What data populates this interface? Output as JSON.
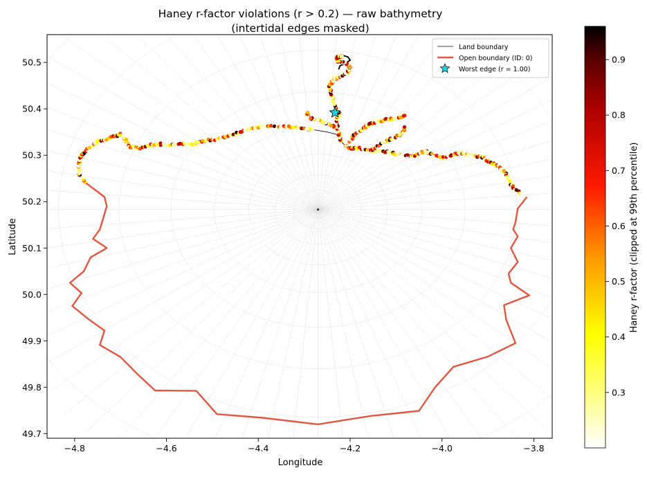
{
  "chart_data": {
    "type": "scatter",
    "title": "Haney r-factor violations (r > 0.2) — raw bathymetry",
    "subtitle": "(intertidal edges masked)",
    "xlabel": "Longitude",
    "ylabel": "Latitude",
    "xlim": [
      -4.86,
      -3.76
    ],
    "ylim": [
      49.69,
      50.56
    ],
    "xticks": [
      -4.8,
      -4.6,
      -4.4,
      -4.2,
      -4.0,
      -3.8
    ],
    "yticks": [
      49.7,
      49.8,
      49.9,
      50.0,
      50.1,
      50.2,
      50.3,
      50.4,
      50.5
    ],
    "xtick_labels": [
      "−4.8",
      "−4.6",
      "−4.4",
      "−4.2",
      "−4.0",
      "−3.8"
    ],
    "ytick_labels": [
      "49.7",
      "49.8",
      "49.9",
      "50.0",
      "50.1",
      "50.2",
      "50.3",
      "50.4",
      "50.5"
    ],
    "grid": false,
    "legend_position": "top-right",
    "legend": [
      {
        "label": "Land boundary",
        "color": "#000000",
        "style": "thin-line"
      },
      {
        "label": "Open boundary (ID: 0)",
        "color": "#e15641",
        "style": "thick-line"
      },
      {
        "label": "Worst edge (r = 1.00)",
        "color": "#18d6e6",
        "style": "star"
      }
    ],
    "colorbar": {
      "label": "Haney r-factor (clipped at 99th percentile)",
      "colormap": "hot_r",
      "range": [
        0.2,
        0.96
      ],
      "ticks": [
        0.3,
        0.4,
        0.5,
        0.6,
        0.7,
        0.8,
        0.9
      ],
      "tick_labels": [
        "0.3",
        "0.4",
        "0.5",
        "0.6",
        "0.7",
        "0.8",
        "0.9"
      ]
    },
    "open_boundary": {
      "name": "Open boundary (ID: 0)",
      "color": "#e15641",
      "points": [
        [
          -4.775,
          50.24
        ],
        [
          -4.735,
          50.21
        ],
        [
          -4.73,
          50.19
        ],
        [
          -4.745,
          50.14
        ],
        [
          -4.76,
          50.12
        ],
        [
          -4.73,
          50.1
        ],
        [
          -4.765,
          50.08
        ],
        [
          -4.78,
          50.05
        ],
        [
          -4.81,
          50.025
        ],
        [
          -4.785,
          50.003
        ],
        [
          -4.805,
          49.975
        ],
        [
          -4.77,
          49.947
        ],
        [
          -4.735,
          49.922
        ],
        [
          -4.745,
          49.891
        ],
        [
          -4.7,
          49.865
        ],
        [
          -4.665,
          49.83
        ],
        [
          -4.625,
          49.793
        ],
        [
          -4.535,
          49.792
        ],
        [
          -4.49,
          49.742
        ],
        [
          -4.39,
          49.734
        ],
        [
          -4.27,
          49.72
        ],
        [
          -4.155,
          49.738
        ],
        [
          -4.05,
          49.749
        ],
        [
          -4.015,
          49.8
        ],
        [
          -3.975,
          49.844
        ],
        [
          -3.9,
          49.866
        ],
        [
          -3.84,
          49.895
        ],
        [
          -3.86,
          49.945
        ],
        [
          -3.865,
          49.977
        ],
        [
          -3.81,
          49.998
        ],
        [
          -3.85,
          50.025
        ],
        [
          -3.855,
          50.045
        ],
        [
          -3.835,
          50.07
        ],
        [
          -3.845,
          50.09
        ],
        [
          -3.85,
          50.1
        ],
        [
          -3.835,
          50.125
        ],
        [
          -3.845,
          50.14
        ],
        [
          -3.84,
          50.155
        ],
        [
          -3.835,
          50.185
        ],
        [
          -3.815,
          50.21
        ]
      ]
    },
    "land_boundary": {
      "name": "Land boundary",
      "color": "#000000",
      "coast": [
        [
          -4.775,
          50.24
        ],
        [
          -4.79,
          50.26
        ],
        [
          -4.792,
          50.28
        ],
        [
          -4.785,
          50.3
        ],
        [
          -4.77,
          50.315
        ],
        [
          -4.75,
          50.33
        ],
        [
          -4.72,
          50.338
        ],
        [
          -4.7,
          50.345
        ],
        [
          -4.688,
          50.333
        ],
        [
          -4.68,
          50.318
        ],
        [
          -4.66,
          50.315
        ],
        [
          -4.64,
          50.32
        ],
        [
          -4.62,
          50.325
        ],
        [
          -4.6,
          50.322
        ],
        [
          -4.57,
          50.325
        ],
        [
          -4.54,
          50.325
        ],
        [
          -4.52,
          50.33
        ],
        [
          -4.49,
          50.335
        ],
        [
          -4.47,
          50.34
        ],
        [
          -4.44,
          50.35
        ],
        [
          -4.41,
          50.36
        ],
        [
          -4.38,
          50.362
        ],
        [
          -4.35,
          50.362
        ],
        [
          -4.31,
          50.36
        ],
        [
          -4.28,
          50.355
        ],
        [
          -4.25,
          50.35
        ],
        [
          -4.23,
          50.345
        ],
        [
          -4.22,
          50.33
        ],
        [
          -4.21,
          50.32
        ],
        [
          -4.2,
          50.315
        ],
        [
          -4.18,
          50.315
        ],
        [
          -4.15,
          50.31
        ],
        [
          -4.12,
          50.308
        ],
        [
          -4.09,
          50.3
        ],
        [
          -4.06,
          50.298
        ],
        [
          -4.035,
          50.31
        ],
        [
          -4.02,
          50.3
        ],
        [
          -4.0,
          50.295
        ],
        [
          -3.98,
          50.3
        ],
        [
          -3.96,
          50.305
        ],
        [
          -3.94,
          50.3
        ],
        [
          -3.91,
          50.295
        ],
        [
          -3.895,
          50.285
        ],
        [
          -3.875,
          50.275
        ],
        [
          -3.86,
          50.258
        ],
        [
          -3.85,
          50.24
        ],
        [
          -3.84,
          50.225
        ],
        [
          -3.815,
          50.21
        ]
      ],
      "estuary_main": [
        [
          -4.22,
          50.33
        ],
        [
          -4.225,
          50.35
        ],
        [
          -4.23,
          50.37
        ],
        [
          -4.225,
          50.39
        ],
        [
          -4.235,
          50.41
        ],
        [
          -4.24,
          50.43
        ],
        [
          -4.245,
          50.45
        ],
        [
          -4.235,
          50.465
        ],
        [
          -4.22,
          50.47
        ],
        [
          -4.205,
          50.478
        ],
        [
          -4.2,
          50.49
        ],
        [
          -4.21,
          50.5
        ],
        [
          -4.225,
          50.502
        ],
        [
          -4.23,
          50.51
        ],
        [
          -4.215,
          50.515
        ],
        [
          -4.205,
          50.512
        ],
        [
          -4.2,
          50.505
        ],
        [
          -4.21,
          50.498
        ],
        [
          -4.222,
          50.493
        ],
        [
          -4.225,
          50.485
        ]
      ],
      "estuary_arm": [
        [
          -4.2,
          50.33
        ],
        [
          -4.19,
          50.345
        ],
        [
          -4.17,
          50.36
        ],
        [
          -4.15,
          50.37
        ],
        [
          -4.13,
          50.375
        ],
        [
          -4.1,
          50.38
        ],
        [
          -4.08,
          50.385
        ]
      ],
      "estuary_east": [
        [
          -4.155,
          50.31
        ],
        [
          -4.14,
          50.32
        ],
        [
          -4.12,
          50.33
        ],
        [
          -4.1,
          50.34
        ],
        [
          -4.085,
          50.35
        ],
        [
          -4.08,
          50.36
        ]
      ],
      "estuary_west": [
        [
          -4.23,
          50.36
        ],
        [
          -4.25,
          50.368
        ],
        [
          -4.27,
          50.375
        ],
        [
          -4.29,
          50.382
        ],
        [
          -4.295,
          50.392
        ]
      ],
      "island": [
        -4.27,
        50.183
      ]
    },
    "worst_edge": {
      "name": "Worst edge (r = 1.00)",
      "lon": -4.233,
      "lat": 50.392,
      "r": 1.0
    },
    "violation_segments": [
      {
        "path": "coast",
        "from": 0,
        "to": 24
      },
      {
        "path": "coast",
        "from": 28,
        "to": 47
      },
      {
        "path": "estuary_main",
        "from": 0,
        "to": 14
      },
      {
        "path": "estuary_arm",
        "from": 0,
        "to": 6
      },
      {
        "path": "estuary_east",
        "from": 0,
        "to": 5
      },
      {
        "path": "estuary_west",
        "from": 0,
        "to": 4
      }
    ]
  }
}
